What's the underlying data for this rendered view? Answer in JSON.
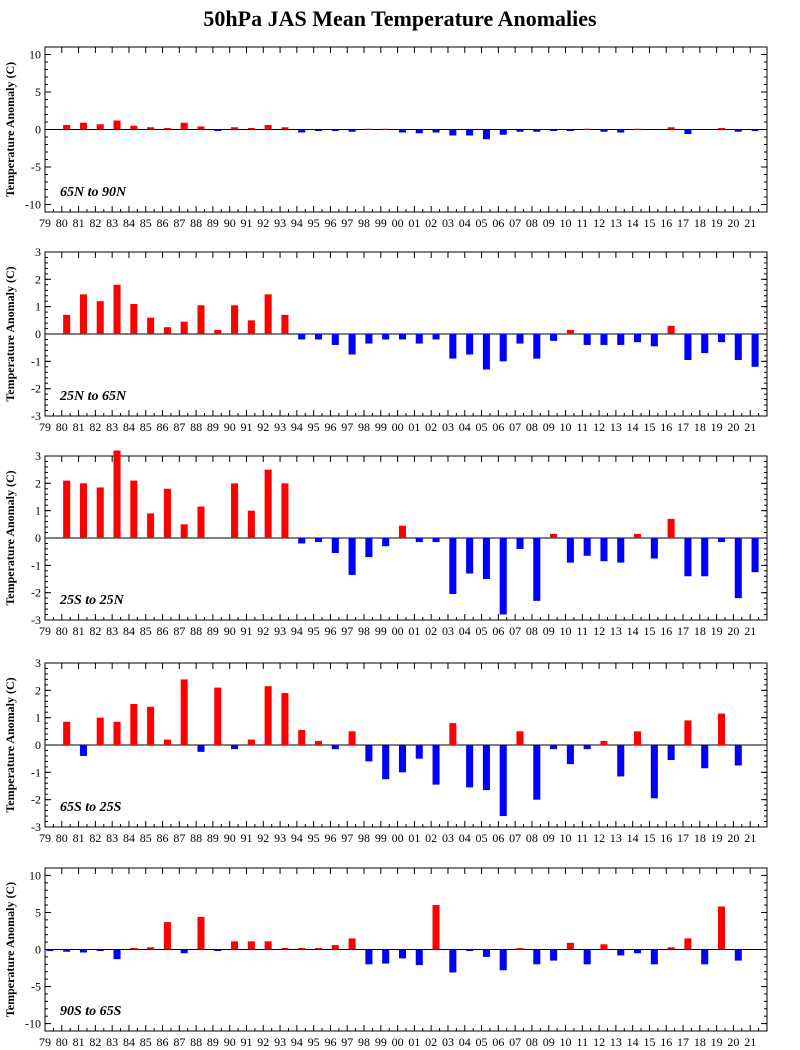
{
  "title": "50hPa JAS Mean Temperature Anomalies",
  "colors": {
    "positive": "#ff0000",
    "negative": "#0000ff"
  },
  "chart_data": [
    {
      "type": "bar",
      "region": "65N to 90N",
      "ylabel": "Temperature Anomaly (C)",
      "ylim": [
        -11,
        11
      ],
      "yticks": [
        -10,
        -5,
        0,
        5,
        10
      ],
      "categories": [
        "79",
        "80",
        "81",
        "82",
        "83",
        "84",
        "85",
        "86",
        "87",
        "88",
        "89",
        "90",
        "91",
        "92",
        "93",
        "94",
        "95",
        "96",
        "97",
        "98",
        "99",
        "00",
        "01",
        "02",
        "03",
        "04",
        "05",
        "06",
        "07",
        "08",
        "09",
        "10",
        "11",
        "12",
        "13",
        "14",
        "15",
        "16",
        "17",
        "18",
        "19",
        "20",
        "21"
      ],
      "values": [
        0,
        0.6,
        0.9,
        0.7,
        1.2,
        0.5,
        0.3,
        0.2,
        0.9,
        0.4,
        -0.2,
        0.3,
        0.2,
        0.6,
        0.3,
        -0.4,
        -0.2,
        -0.2,
        -0.3,
        0.1,
        0.1,
        -0.4,
        -0.5,
        -0.4,
        -0.8,
        -0.8,
        -1.3,
        -0.7,
        -0.3,
        -0.3,
        -0.2,
        -0.2,
        0.1,
        -0.3,
        -0.4,
        0.1,
        0,
        0.3,
        -0.6,
        0,
        0.2,
        -0.3,
        -0.2
      ]
    },
    {
      "type": "bar",
      "region": "25N to 65N",
      "ylabel": "Temperature Anomaly (C)",
      "ylim": [
        -3,
        3
      ],
      "yticks": [
        -3,
        -2,
        -1,
        0,
        1,
        2,
        3
      ],
      "categories": [
        "79",
        "80",
        "81",
        "82",
        "83",
        "84",
        "85",
        "86",
        "87",
        "88",
        "89",
        "90",
        "91",
        "92",
        "93",
        "94",
        "95",
        "96",
        "97",
        "98",
        "99",
        "00",
        "01",
        "02",
        "03",
        "04",
        "05",
        "06",
        "07",
        "08",
        "09",
        "10",
        "11",
        "12",
        "13",
        "14",
        "15",
        "16",
        "17",
        "18",
        "19",
        "20",
        "21"
      ],
      "values": [
        0,
        0.7,
        1.45,
        1.2,
        1.8,
        1.1,
        0.6,
        0.25,
        0.45,
        1.05,
        0.15,
        1.05,
        0.5,
        1.45,
        0.7,
        -0.2,
        -0.2,
        -0.4,
        -0.75,
        -0.35,
        -0.2,
        -0.2,
        -0.35,
        -0.2,
        -0.9,
        -0.75,
        -1.3,
        -1.0,
        -0.35,
        -0.9,
        -0.25,
        0.15,
        -0.4,
        -0.4,
        -0.4,
        -0.3,
        -0.45,
        0.3,
        -0.95,
        -0.7,
        -0.3,
        -0.95,
        -1.2
      ]
    },
    {
      "type": "bar",
      "region": "25S to 25N",
      "ylabel": "Temperature Anomaly (C)",
      "ylim": [
        -3,
        3
      ],
      "yticks": [
        -3,
        -2,
        -1,
        0,
        1,
        2,
        3
      ],
      "categories": [
        "79",
        "80",
        "81",
        "82",
        "83",
        "84",
        "85",
        "86",
        "87",
        "88",
        "89",
        "90",
        "91",
        "92",
        "93",
        "94",
        "95",
        "96",
        "97",
        "98",
        "99",
        "00",
        "01",
        "02",
        "03",
        "04",
        "05",
        "06",
        "07",
        "08",
        "09",
        "10",
        "11",
        "12",
        "13",
        "14",
        "15",
        "16",
        "17",
        "18",
        "19",
        "20",
        "21"
      ],
      "values": [
        0,
        2.1,
        2.0,
        1.85,
        3.2,
        2.1,
        0.9,
        1.8,
        0.5,
        1.15,
        0,
        2.0,
        1.0,
        2.5,
        2.0,
        -0.2,
        -0.15,
        -0.55,
        -1.35,
        -0.7,
        -0.3,
        0.45,
        -0.15,
        -0.15,
        -2.05,
        -1.3,
        -1.5,
        -2.8,
        -0.4,
        -2.3,
        0.15,
        -0.9,
        -0.65,
        -0.85,
        -0.9,
        0.15,
        -0.75,
        0.7,
        -1.4,
        -1.4,
        -0.15,
        -2.2,
        -1.25
      ]
    },
    {
      "type": "bar",
      "region": "65S to 25S",
      "ylabel": "Temperature Anomaly (C)",
      "ylim": [
        -3,
        3
      ],
      "yticks": [
        -3,
        -2,
        -1,
        0,
        1,
        2,
        3
      ],
      "categories": [
        "79",
        "80",
        "81",
        "82",
        "83",
        "84",
        "85",
        "86",
        "87",
        "88",
        "89",
        "90",
        "91",
        "92",
        "93",
        "94",
        "95",
        "96",
        "97",
        "98",
        "99",
        "00",
        "01",
        "02",
        "03",
        "04",
        "05",
        "06",
        "07",
        "08",
        "09",
        "10",
        "11",
        "12",
        "13",
        "14",
        "15",
        "16",
        "17",
        "18",
        "19",
        "20",
        "21"
      ],
      "values": [
        0,
        0.85,
        -0.4,
        1.0,
        0.85,
        1.5,
        1.4,
        0.2,
        2.4,
        -0.25,
        2.1,
        -0.15,
        0.2,
        2.15,
        1.9,
        0.55,
        0.15,
        -0.15,
        0.5,
        -0.6,
        -1.25,
        -1.0,
        -0.5,
        -1.45,
        0.8,
        -1.55,
        -1.65,
        -2.6,
        0.5,
        -2.0,
        -0.15,
        -0.7,
        -0.15,
        0.15,
        -1.15,
        0.5,
        -1.95,
        -0.55,
        0.9,
        -0.85,
        1.15,
        -0.75,
        0
      ]
    },
    {
      "type": "bar",
      "region": "90S to 65S",
      "ylabel": "Temperature Anomaly (C)",
      "ylim": [
        -11,
        11
      ],
      "yticks": [
        -10,
        -5,
        0,
        5,
        10
      ],
      "categories": [
        "79",
        "80",
        "81",
        "82",
        "83",
        "84",
        "85",
        "86",
        "87",
        "88",
        "89",
        "90",
        "91",
        "92",
        "93",
        "94",
        "95",
        "96",
        "97",
        "98",
        "99",
        "00",
        "01",
        "02",
        "03",
        "04",
        "05",
        "06",
        "07",
        "08",
        "09",
        "10",
        "11",
        "12",
        "13",
        "14",
        "15",
        "16",
        "17",
        "18",
        "19",
        "20",
        "21"
      ],
      "values": [
        -0.2,
        -0.3,
        -0.4,
        -0.2,
        -1.3,
        0.2,
        0.3,
        3.7,
        -0.5,
        4.4,
        -0.2,
        1.1,
        1.1,
        1.1,
        0.2,
        0.2,
        0.2,
        0.6,
        1.5,
        -2.0,
        -1.9,
        -1.2,
        -2.1,
        6.0,
        -3.1,
        -0.2,
        -1.0,
        -2.8,
        0.2,
        -2.0,
        -1.5,
        0.9,
        -2.0,
        0.7,
        -0.8,
        -0.5,
        -2.0,
        0.3,
        1.5,
        -2.0,
        5.8,
        -1.5,
        0
      ]
    }
  ]
}
